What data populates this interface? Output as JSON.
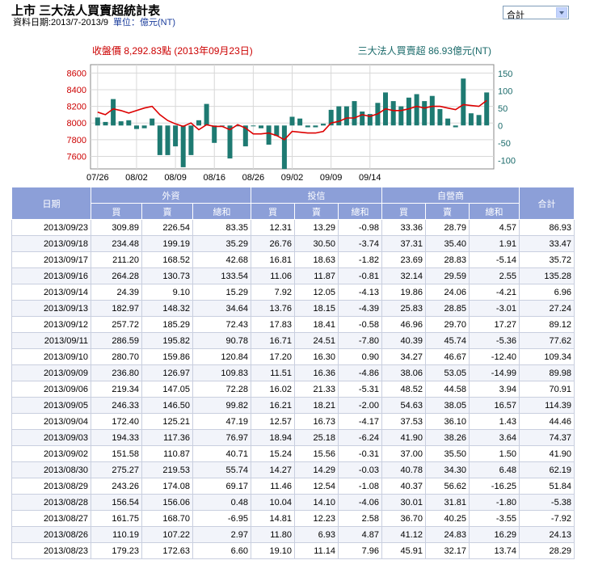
{
  "header": {
    "title": "上市 三大法人買賣超統計表",
    "date_label": "資料日期:2013/7-2013/9",
    "unit_label": "單位：億元(NT)"
  },
  "selector": {
    "value": "合計"
  },
  "chart_data": {
    "type": "bar+line",
    "price_label": "收盤價 8,292.83點 (2013年09月23日)",
    "net_label": "三大法人買賣超 86.93億元(NT)",
    "left_axis": {
      "ticks": [
        8600,
        8400,
        8200,
        8000,
        7800,
        7600
      ],
      "range": [
        7450,
        8700
      ]
    },
    "right_axis": {
      "ticks": [
        150,
        100,
        50,
        0,
        -50,
        -100
      ],
      "range": [
        -125,
        175
      ]
    },
    "x_tick_labels": [
      "07/26",
      "08/02",
      "08/09",
      "08/16",
      "08/26",
      "09/02",
      "09/09",
      "09/14"
    ],
    "x_tick_index": [
      0,
      5,
      10,
      15,
      20,
      25,
      30,
      35
    ],
    "bars": [
      23,
      10,
      76,
      12,
      15,
      -10,
      -8,
      20,
      -85,
      -85,
      -60,
      -120,
      -85,
      15,
      62,
      -50,
      -2,
      -95,
      -2,
      -60,
      -2,
      -8,
      -55,
      -30,
      -125,
      25,
      20,
      -5,
      -5,
      5,
      45,
      55,
      55,
      70,
      40,
      33,
      65,
      95,
      70,
      55,
      80,
      90,
      70,
      85,
      47,
      20,
      -5,
      135,
      35,
      30,
      95
    ],
    "price": [
      8130,
      8100,
      8170,
      8150,
      8120,
      8150,
      8180,
      8200,
      8100,
      8030,
      7990,
      7960,
      8000,
      7920,
      7980,
      7960,
      7960,
      7920,
      7980,
      7940,
      7870,
      7870,
      7880,
      7850,
      7800,
      7900,
      7890,
      7880,
      7880,
      7900,
      8000,
      8020,
      8060,
      8060,
      8100,
      8080,
      8110,
      8170,
      8150,
      8150,
      8170,
      8200,
      8180,
      8200,
      8200,
      8180,
      8160,
      8220,
      8210,
      8200,
      8270
    ]
  },
  "table": {
    "group_headers": {
      "date": "日期",
      "foreign": "外資",
      "trust": "投信",
      "dealer": "自營商",
      "total": "合計"
    },
    "sub_headers": [
      "買",
      "賣",
      "總和",
      "買",
      "賣",
      "總和",
      "買",
      "賣",
      "總和"
    ],
    "rows": [
      {
        "date": "2013/09/23",
        "fb": "309.89",
        "fs": "226.54",
        "fn": "83.35",
        "tb": "12.31",
        "ts": "13.29",
        "tn": "-0.98",
        "db": "33.36",
        "ds": "28.79",
        "dn": "4.57",
        "total": "86.93"
      },
      {
        "date": "2013/09/18",
        "fb": "234.48",
        "fs": "199.19",
        "fn": "35.29",
        "tb": "26.76",
        "ts": "30.50",
        "tn": "-3.74",
        "db": "37.31",
        "ds": "35.40",
        "dn": "1.91",
        "total": "33.47"
      },
      {
        "date": "2013/09/17",
        "fb": "211.20",
        "fs": "168.52",
        "fn": "42.68",
        "tb": "16.81",
        "ts": "18.63",
        "tn": "-1.82",
        "db": "23.69",
        "ds": "28.83",
        "dn": "-5.14",
        "total": "35.72"
      },
      {
        "date": "2013/09/16",
        "fb": "264.28",
        "fs": "130.73",
        "fn": "133.54",
        "tb": "11.06",
        "ts": "11.87",
        "tn": "-0.81",
        "db": "32.14",
        "ds": "29.59",
        "dn": "2.55",
        "total": "135.28"
      },
      {
        "date": "2013/09/14",
        "fb": "24.39",
        "fs": "9.10",
        "fn": "15.29",
        "tb": "7.92",
        "ts": "12.05",
        "tn": "-4.13",
        "db": "19.86",
        "ds": "24.06",
        "dn": "-4.21",
        "total": "6.96"
      },
      {
        "date": "2013/09/13",
        "fb": "182.97",
        "fs": "148.32",
        "fn": "34.64",
        "tb": "13.76",
        "ts": "18.15",
        "tn": "-4.39",
        "db": "25.83",
        "ds": "28.85",
        "dn": "-3.01",
        "total": "27.24"
      },
      {
        "date": "2013/09/12",
        "fb": "257.72",
        "fs": "185.29",
        "fn": "72.43",
        "tb": "17.83",
        "ts": "18.41",
        "tn": "-0.58",
        "db": "46.96",
        "ds": "29.70",
        "dn": "17.27",
        "total": "89.12"
      },
      {
        "date": "2013/09/11",
        "fb": "286.59",
        "fs": "195.82",
        "fn": "90.78",
        "tb": "16.71",
        "ts": "24.51",
        "tn": "-7.80",
        "db": "40.39",
        "ds": "45.74",
        "dn": "-5.36",
        "total": "77.62"
      },
      {
        "date": "2013/09/10",
        "fb": "280.70",
        "fs": "159.86",
        "fn": "120.84",
        "tb": "17.20",
        "ts": "16.30",
        "tn": "0.90",
        "db": "34.27",
        "ds": "46.67",
        "dn": "-12.40",
        "total": "109.34"
      },
      {
        "date": "2013/09/09",
        "fb": "236.80",
        "fs": "126.97",
        "fn": "109.83",
        "tb": "11.51",
        "ts": "16.36",
        "tn": "-4.86",
        "db": "38.06",
        "ds": "53.05",
        "dn": "-14.99",
        "total": "89.98"
      },
      {
        "date": "2013/09/06",
        "fb": "219.34",
        "fs": "147.05",
        "fn": "72.28",
        "tb": "16.02",
        "ts": "21.33",
        "tn": "-5.31",
        "db": "48.52",
        "ds": "44.58",
        "dn": "3.94",
        "total": "70.91"
      },
      {
        "date": "2013/09/05",
        "fb": "246.33",
        "fs": "146.50",
        "fn": "99.82",
        "tb": "16.21",
        "ts": "18.21",
        "tn": "-2.00",
        "db": "54.63",
        "ds": "38.05",
        "dn": "16.57",
        "total": "114.39"
      },
      {
        "date": "2013/09/04",
        "fb": "172.40",
        "fs": "125.21",
        "fn": "47.19",
        "tb": "12.57",
        "ts": "16.73",
        "tn": "-4.17",
        "db": "37.53",
        "ds": "36.10",
        "dn": "1.43",
        "total": "44.46"
      },
      {
        "date": "2013/09/03",
        "fb": "194.33",
        "fs": "117.36",
        "fn": "76.97",
        "tb": "18.94",
        "ts": "25.18",
        "tn": "-6.24",
        "db": "41.90",
        "ds": "38.26",
        "dn": "3.64",
        "total": "74.37"
      },
      {
        "date": "2013/09/02",
        "fb": "151.58",
        "fs": "110.87",
        "fn": "40.71",
        "tb": "15.24",
        "ts": "15.56",
        "tn": "-0.31",
        "db": "37.00",
        "ds": "35.50",
        "dn": "1.50",
        "total": "41.90"
      },
      {
        "date": "2013/08/30",
        "fb": "275.27",
        "fs": "219.53",
        "fn": "55.74",
        "tb": "14.27",
        "ts": "14.29",
        "tn": "-0.03",
        "db": "40.78",
        "ds": "34.30",
        "dn": "6.48",
        "total": "62.19"
      },
      {
        "date": "2013/08/29",
        "fb": "243.26",
        "fs": "174.08",
        "fn": "69.17",
        "tb": "11.46",
        "ts": "12.54",
        "tn": "-1.08",
        "db": "40.37",
        "ds": "56.62",
        "dn": "-16.25",
        "total": "51.84"
      },
      {
        "date": "2013/08/28",
        "fb": "156.54",
        "fs": "156.06",
        "fn": "0.48",
        "tb": "10.04",
        "ts": "14.10",
        "tn": "-4.06",
        "db": "30.01",
        "ds": "31.81",
        "dn": "-1.80",
        "total": "-5.38"
      },
      {
        "date": "2013/08/27",
        "fb": "161.75",
        "fs": "168.70",
        "fn": "-6.95",
        "tb": "14.81",
        "ts": "12.23",
        "tn": "2.58",
        "db": "36.70",
        "ds": "40.25",
        "dn": "-3.55",
        "total": "-7.92"
      },
      {
        "date": "2013/08/26",
        "fb": "110.19",
        "fs": "107.22",
        "fn": "2.97",
        "tb": "11.80",
        "ts": "6.93",
        "tn": "4.87",
        "db": "41.12",
        "ds": "24.83",
        "dn": "16.29",
        "total": "24.13"
      },
      {
        "date": "2013/08/23",
        "fb": "179.23",
        "fs": "172.63",
        "fn": "6.60",
        "tb": "19.10",
        "ts": "11.14",
        "tn": "7.96",
        "db": "45.91",
        "ds": "32.17",
        "dn": "13.74",
        "total": "28.29"
      }
    ]
  }
}
